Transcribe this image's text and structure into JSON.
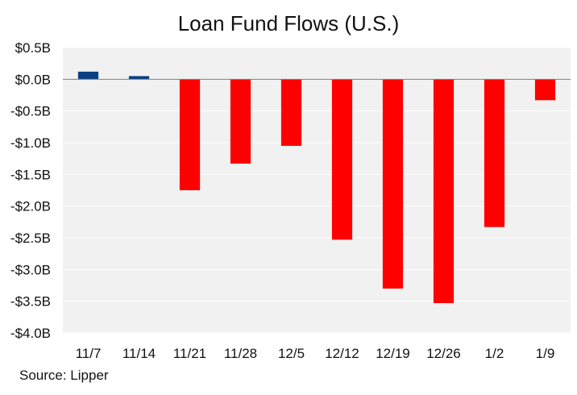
{
  "source": "Source: Lipper",
  "colors": {
    "positive": "#0b3f84",
    "negative": "#ff0000",
    "plot_bg": "#f1f1f1",
    "grid": "#ffffff",
    "zero_line": "#7f7f7f"
  },
  "chart_data": {
    "type": "bar",
    "title": "Loan Fund Flows (U.S.)",
    "xlabel": "",
    "ylabel": "",
    "categories": [
      "11/7",
      "11/14",
      "11/21",
      "11/28",
      "12/5",
      "12/12",
      "12/19",
      "12/26",
      "1/2",
      "1/9"
    ],
    "values": [
      0.12,
      0.05,
      -1.75,
      -1.33,
      -1.05,
      -2.53,
      -3.3,
      -3.53,
      -2.33,
      -0.33
    ],
    "unit": "B",
    "ylim": [
      -4.0,
      0.5
    ],
    "yticks": [
      0.5,
      0.0,
      -0.5,
      -1.0,
      -1.5,
      -2.0,
      -2.5,
      -3.0,
      -3.5,
      -4.0
    ],
    "ytick_labels": [
      "$0.5B",
      "$0.0B",
      "-$0.5B",
      "-$1.0B",
      "-$1.5B",
      "-$2.0B",
      "-$2.5B",
      "-$3.0B",
      "-$3.5B",
      "-$4.0B"
    ],
    "grid": true,
    "legend": "none"
  }
}
